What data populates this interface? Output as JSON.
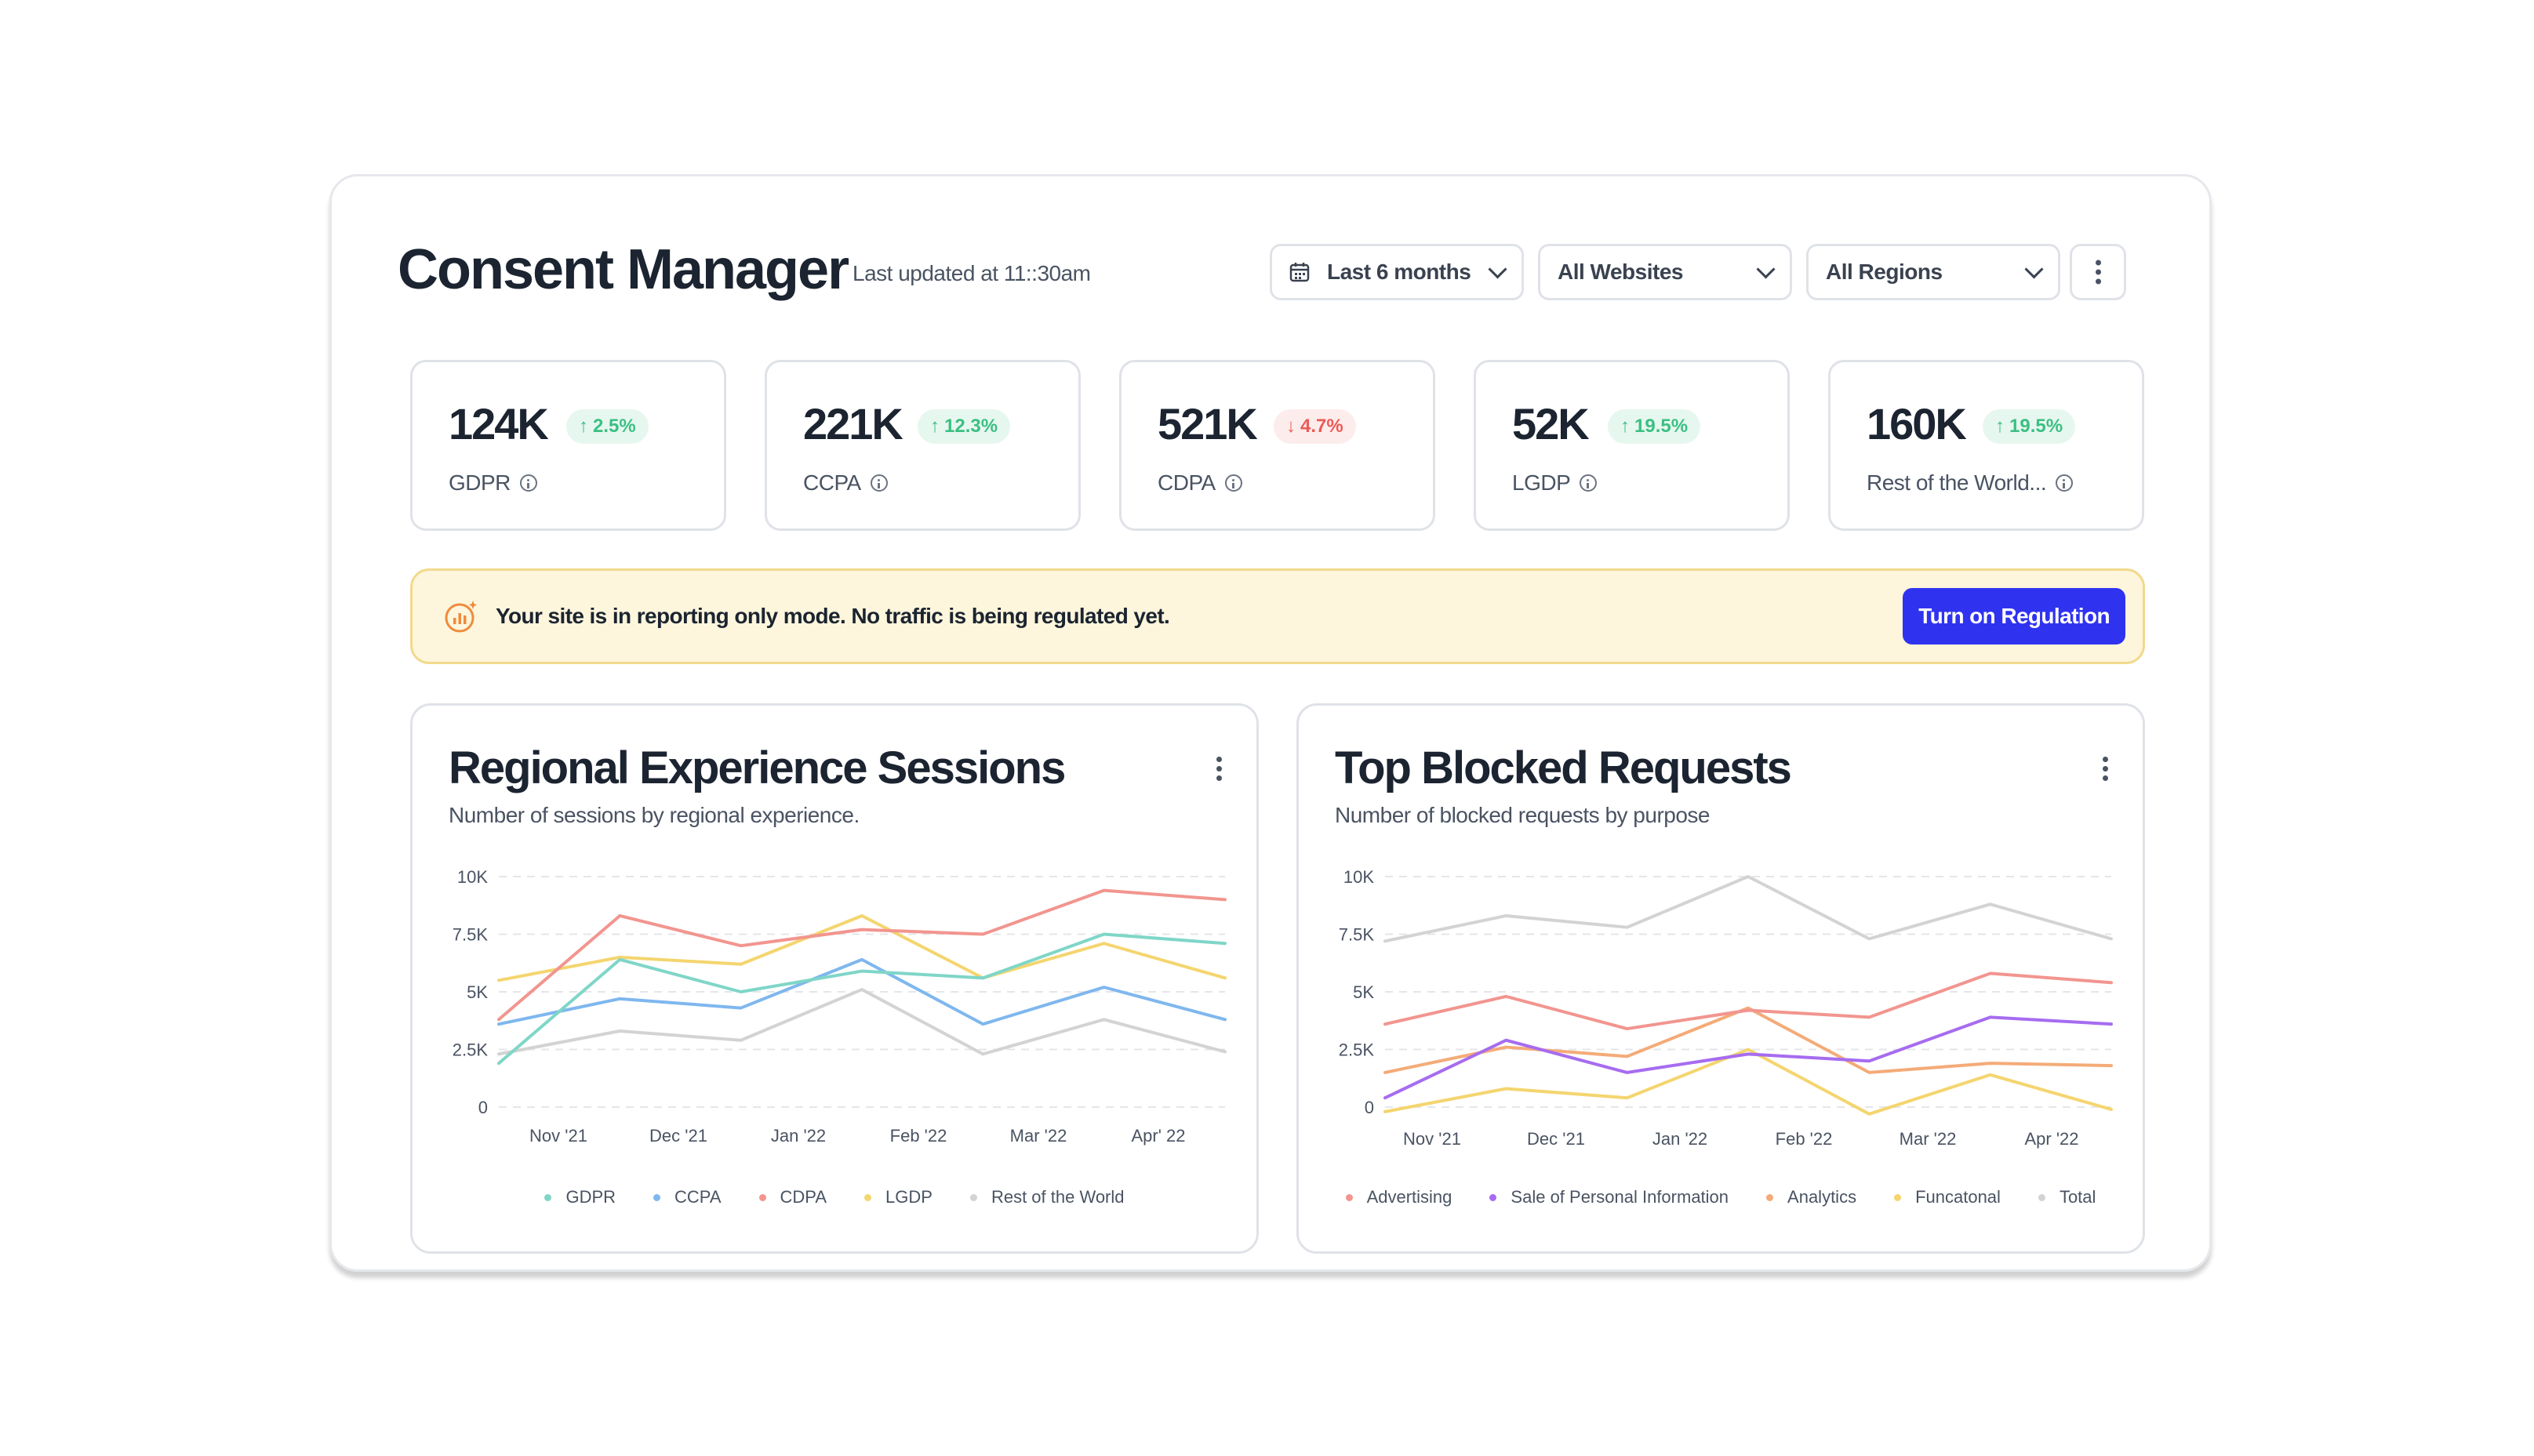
{
  "header": {
    "title": "Consent Manager",
    "updated": "Last updated at 11::30am",
    "filters": {
      "date": "Last 6 months",
      "websites": "All Websites",
      "regions": "All Regions"
    }
  },
  "stats": [
    {
      "value": "124K",
      "change": "2.5%",
      "direction": "up",
      "label": "GDPR"
    },
    {
      "value": "221K",
      "change": "12.3%",
      "direction": "up",
      "label": "CCPA"
    },
    {
      "value": "521K",
      "change": "4.7%",
      "direction": "down",
      "label": "CDPA"
    },
    {
      "value": "52K",
      "change": "19.5%",
      "direction": "up",
      "label": "LGDP"
    },
    {
      "value": "160K",
      "change": "19.5%",
      "direction": "up",
      "label": "Rest of the World..."
    }
  ],
  "banner": {
    "message": "Your site is in reporting only mode. No traffic is being regulated yet.",
    "button": "Turn on Regulation"
  },
  "colors": {
    "accent": "#2f33f0",
    "up": "#3bbf83",
    "down": "#ec5a56"
  },
  "panels": {
    "regional": {
      "title": "Regional Experience Sessions",
      "subtitle": "Number of sessions by regional experience."
    },
    "blocked": {
      "title": "Top Blocked Requests",
      "subtitle": "Number of blocked requests by purpose"
    }
  },
  "chart_data": [
    {
      "type": "line",
      "y_ticks": [
        "10K",
        "7.5K",
        "5K",
        "2.5K",
        "0"
      ],
      "ylim": [
        0,
        10000
      ],
      "x_labels": [
        "Nov '21",
        "Dec '21",
        "Jan '22",
        "Feb '22",
        "Mar '22",
        "Apr' 22"
      ],
      "x_count": 7,
      "grid": true,
      "legend": "bottom",
      "series": [
        {
          "name": "GDPR",
          "color": "#7fd6c8",
          "values": [
            1900,
            6400,
            5000,
            5900,
            5600,
            7500,
            7100
          ]
        },
        {
          "name": "CCPA",
          "color": "#7fb7ee",
          "values": [
            3600,
            4700,
            4300,
            6400,
            3600,
            5200,
            3800
          ]
        },
        {
          "name": "CDPA",
          "color": "#f2958f",
          "values": [
            3800,
            8300,
            7000,
            7700,
            7500,
            9400,
            9000
          ]
        },
        {
          "name": "LGDP",
          "color": "#f4d56f",
          "values": [
            5500,
            6500,
            6200,
            8300,
            5600,
            7100,
            5600
          ]
        },
        {
          "name": "Rest of the World",
          "color": "#d3d3d3",
          "values": [
            2300,
            3300,
            2900,
            5100,
            2300,
            3800,
            2400
          ]
        }
      ]
    },
    {
      "type": "line",
      "y_ticks": [
        "10K",
        "7.5K",
        "5K",
        "2.5K",
        "0"
      ],
      "ylim": [
        0,
        10000
      ],
      "x_labels": [
        "Nov '21",
        "Dec '21",
        "Jan '22",
        "Feb '22",
        "Mar '22",
        "Apr '22"
      ],
      "x_count": 7,
      "grid": true,
      "legend": "bottom",
      "series": [
        {
          "name": "Advertising",
          "color": "#f2958f",
          "values": [
            3600,
            4800,
            3400,
            4200,
            3900,
            5800,
            5400
          ]
        },
        {
          "name": "Sale of Personal Information",
          "color": "#a66cf0",
          "values": [
            400,
            2900,
            1500,
            2300,
            2000,
            3900,
            3600
          ]
        },
        {
          "name": "Analytics",
          "color": "#f4ab78",
          "values": [
            1500,
            2600,
            2200,
            4300,
            1500,
            1900,
            1800
          ]
        },
        {
          "name": "Funcatonal",
          "color": "#f4d56f",
          "values": [
            -200,
            800,
            400,
            2500,
            -300,
            1400,
            -100
          ]
        },
        {
          "name": "Total",
          "color": "#d3d3d3",
          "values": [
            7200,
            8300,
            7800,
            10000,
            7300,
            8800,
            7300
          ]
        }
      ]
    }
  ]
}
